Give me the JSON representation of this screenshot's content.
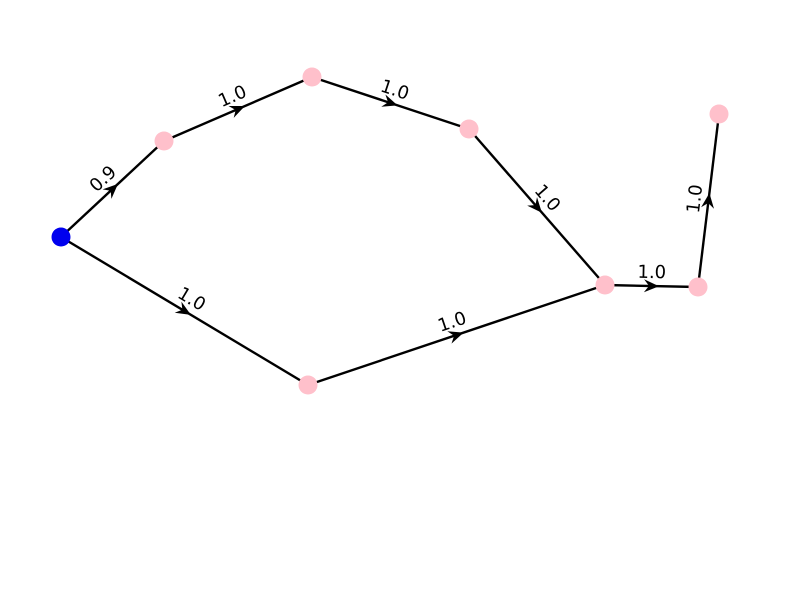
{
  "graph": {
    "directed": true,
    "colors": {
      "source_node": "#0000ee",
      "node": "#ffc0cb",
      "edge": "#000000"
    },
    "nodes": [
      {
        "id": "n0",
        "role": "source"
      },
      {
        "id": "n1",
        "role": "node"
      },
      {
        "id": "n2",
        "role": "node"
      },
      {
        "id": "n3",
        "role": "node"
      },
      {
        "id": "n4",
        "role": "node"
      },
      {
        "id": "n5",
        "role": "node"
      },
      {
        "id": "n6",
        "role": "node"
      },
      {
        "id": "n7",
        "role": "node"
      }
    ],
    "edges": [
      {
        "from": "n0",
        "to": "n1",
        "weight": "0.9"
      },
      {
        "from": "n1",
        "to": "n2",
        "weight": "1.0"
      },
      {
        "from": "n2",
        "to": "n3",
        "weight": "1.0"
      },
      {
        "from": "n3",
        "to": "n5",
        "weight": "1.0"
      },
      {
        "from": "n0",
        "to": "n4",
        "weight": "1.0"
      },
      {
        "from": "n4",
        "to": "n5",
        "weight": "1.0"
      },
      {
        "from": "n5",
        "to": "n6",
        "weight": "1.0"
      },
      {
        "from": "n6",
        "to": "n7",
        "weight": "1.0"
      }
    ]
  }
}
